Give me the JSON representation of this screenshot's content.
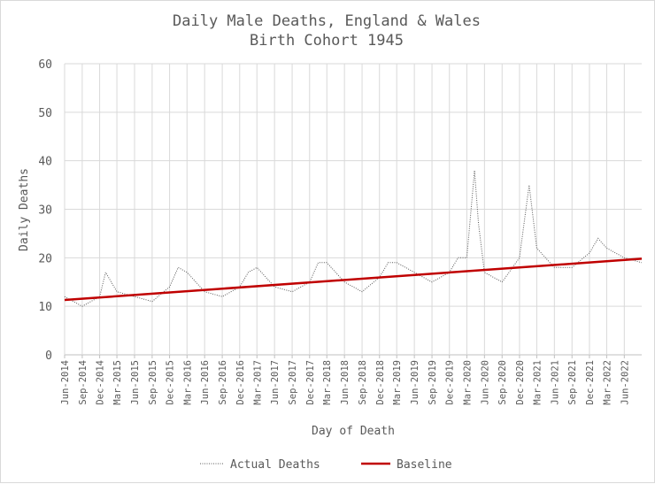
{
  "chart_data": {
    "type": "line",
    "title": "Daily Male Deaths, England & Wales",
    "subtitle": "Birth Cohort 1945",
    "xlabel": "Day of Death",
    "ylabel": "Daily Deaths",
    "ylim": [
      0,
      60
    ],
    "y_ticks": [
      "0",
      "10",
      "20",
      "30",
      "40",
      "50",
      "60"
    ],
    "x_range": [
      "2014-06-01",
      "2022-08-31"
    ],
    "x_ticks": [
      "Jun-2014",
      "Sep-2014",
      "Dec-2014",
      "Mar-2015",
      "Jun-2015",
      "Sep-2015",
      "Dec-2015",
      "Mar-2016",
      "Jun-2016",
      "Sep-2016",
      "Dec-2016",
      "Mar-2017",
      "Jun-2017",
      "Sep-2017",
      "Dec-2017",
      "Mar-2018",
      "Jun-2018",
      "Sep-2018",
      "Dec-2018",
      "Mar-2019",
      "Jun-2019",
      "Sep-2019",
      "Dec-2019",
      "Mar-2020",
      "Jun-2020",
      "Sep-2020",
      "Dec-2020",
      "Mar-2021",
      "Jun-2021",
      "Sep-2021",
      "Dec-2021",
      "Mar-2022",
      "Jun-2022"
    ],
    "grid": true,
    "legend_position": "bottom",
    "series": [
      {
        "name": "Actual Deaths",
        "color": "#595959",
        "style": "dotted",
        "x": [
          "2014-06-01",
          "2014-09-01",
          "2014-12-01",
          "2015-01-01",
          "2015-03-01",
          "2015-06-01",
          "2015-09-01",
          "2015-12-01",
          "2016-01-15",
          "2016-03-01",
          "2016-06-01",
          "2016-09-01",
          "2016-12-01",
          "2017-01-15",
          "2017-03-01",
          "2017-06-01",
          "2017-09-01",
          "2017-12-01",
          "2018-01-15",
          "2018-03-01",
          "2018-06-01",
          "2018-09-01",
          "2018-12-01",
          "2019-01-15",
          "2019-03-01",
          "2019-06-01",
          "2019-09-01",
          "2019-12-01",
          "2020-01-15",
          "2020-03-01",
          "2020-04-10",
          "2020-05-01",
          "2020-06-01",
          "2020-09-01",
          "2020-12-01",
          "2021-01-20",
          "2021-03-01",
          "2021-06-01",
          "2021-09-01",
          "2021-12-01",
          "2022-01-15",
          "2022-03-01",
          "2022-06-01",
          "2022-08-31"
        ],
        "y": [
          12,
          10,
          12,
          17,
          13,
          12,
          11,
          14,
          18,
          17,
          13,
          12,
          14,
          17,
          18,
          14,
          13,
          15,
          19,
          19,
          15,
          13,
          16,
          19,
          19,
          17,
          15,
          17,
          20,
          20,
          38,
          27,
          17,
          15,
          20,
          35,
          22,
          18,
          18,
          21,
          24,
          22,
          20,
          19
        ]
      },
      {
        "name": "Baseline",
        "color": "#c00000",
        "style": "solid",
        "x": [
          "2014-06-01",
          "2022-08-31"
        ],
        "y": [
          11.3,
          19.8
        ]
      }
    ]
  }
}
